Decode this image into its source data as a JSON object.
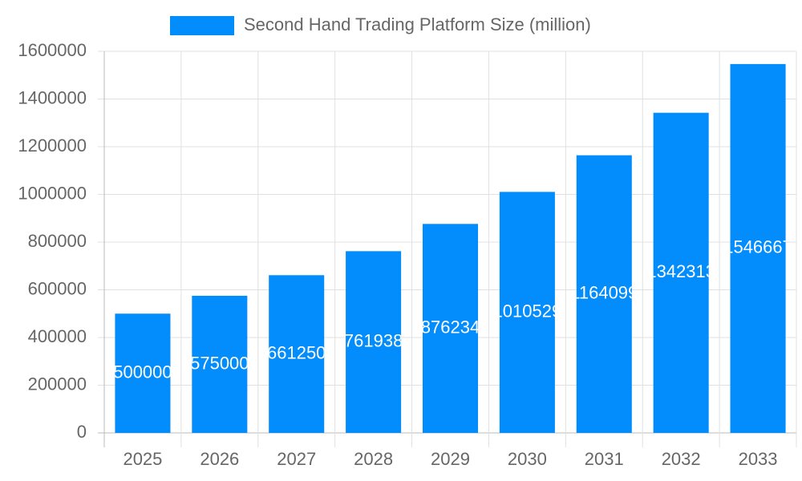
{
  "chart_data": {
    "type": "bar",
    "categories": [
      "2025",
      "2026",
      "2027",
      "2028",
      "2029",
      "2030",
      "2031",
      "2032",
      "2033"
    ],
    "series": [
      {
        "name": "Second Hand Trading Platform Size (million)",
        "color": "#038cfc",
        "values": [
          500000,
          575000,
          661250,
          761938,
          876234,
          1010529,
          1164099,
          1342313,
          1546667
        ]
      }
    ],
    "ylim": [
      0,
      1600000
    ],
    "yticks": [
      0,
      200000,
      400000,
      600000,
      800000,
      1000000,
      1200000,
      1400000,
      1600000
    ],
    "grid": true,
    "legend": "top"
  }
}
